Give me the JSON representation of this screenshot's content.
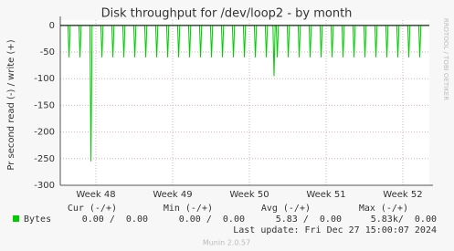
{
  "chart_data": {
    "type": "line",
    "title": "Disk throughput for /dev/loop2 - by month",
    "y_label": "Pr second read (-) / write (+)",
    "side_label": "RRDTOOL / TOBI OETIKER",
    "x": [
      0,
      0.7,
      0.8,
      0.9,
      1.7,
      1.8,
      1.9,
      2.7,
      2.8,
      2.9,
      3.7,
      3.8,
      3.9,
      4.7,
      4.8,
      4.9,
      5.7,
      5.8,
      5.9,
      6.7,
      6.8,
      6.9,
      7.7,
      7.8,
      7.9,
      8.7,
      8.8,
      8.9,
      9.7,
      9.8,
      9.9,
      10.7,
      10.8,
      10.9,
      11.7,
      11.8,
      11.9,
      12.7,
      12.8,
      12.9,
      13.7,
      13.8,
      13.9,
      14.7,
      14.8,
      14.9,
      15.7,
      15.8,
      15.9,
      16.7,
      16.8,
      16.9,
      17.7,
      17.8,
      17.9,
      18.7,
      18.8,
      18.9,
      19.4,
      19.5,
      19.6,
      19.7,
      19.8,
      19.9,
      20.7,
      20.8,
      20.9,
      21.7,
      21.8,
      21.9,
      22.7,
      22.8,
      22.9,
      23.7,
      23.8,
      23.9,
      24.7,
      24.8,
      24.9,
      25.7,
      25.8,
      25.9,
      26.7,
      26.8,
      26.9,
      27.7,
      27.8,
      27.9,
      28.7,
      28.8,
      28.9,
      29.7,
      29.8,
      29.9,
      30.7,
      30.8,
      30.9,
      31.7,
      31.8,
      31.9,
      32.7,
      32.8,
      32.9,
      33.67
    ],
    "series": [
      {
        "name": "Bytes",
        "color": "#00cc00",
        "values": [
          0,
          0,
          -60,
          0,
          0,
          -60,
          0,
          0,
          -255,
          0,
          0,
          -60,
          0,
          0,
          -60,
          0,
          0,
          -60,
          0,
          0,
          -60,
          0,
          0,
          -60,
          0,
          0,
          -60,
          0,
          0,
          -60,
          0,
          0,
          -60,
          0,
          0,
          -60,
          0,
          0,
          -60,
          0,
          0,
          -60,
          0,
          0,
          -60,
          0,
          0,
          -60,
          0,
          0,
          -60,
          0,
          0,
          -60,
          0,
          0,
          -60,
          0,
          0,
          -95,
          0,
          0,
          -60,
          0,
          0,
          -60,
          0,
          0,
          -60,
          0,
          0,
          -60,
          0,
          0,
          -60,
          0,
          0,
          -60,
          0,
          0,
          -60,
          0,
          0,
          -60,
          0,
          0,
          -60,
          0,
          0,
          -60,
          0,
          0,
          -60,
          0,
          0,
          -60,
          0,
          0,
          -60,
          0,
          0,
          -60,
          0,
          0
        ]
      }
    ],
    "xlim": [
      0,
      33.67
    ],
    "xticks": [
      {
        "value": 3.25,
        "label": "Week 48"
      },
      {
        "value": 10.25,
        "label": "Week 49"
      },
      {
        "value": 17.25,
        "label": "Week 50"
      },
      {
        "value": 24.25,
        "label": "Week 51"
      },
      {
        "value": 31.25,
        "label": "Week 52"
      }
    ],
    "ylim": [
      -300,
      10
    ],
    "yticks": [
      0,
      -50,
      -100,
      -150,
      -200,
      -250,
      -300
    ],
    "grid": true,
    "legend": {
      "headers": [
        "Cur (-/+)",
        "Min (-/+)",
        "Avg (-/+)",
        "Max (-/+)"
      ],
      "rows": [
        {
          "name": "Bytes",
          "cells": [
            "0.00 /  0.00",
            "0.00 /  0.00",
            "5.83 /  0.00",
            "5.83k/  0.00"
          ]
        }
      ]
    },
    "last_update": "Last update: Fri Dec 27 15:00:07 2024",
    "footer": "Munin 2.0.57"
  }
}
